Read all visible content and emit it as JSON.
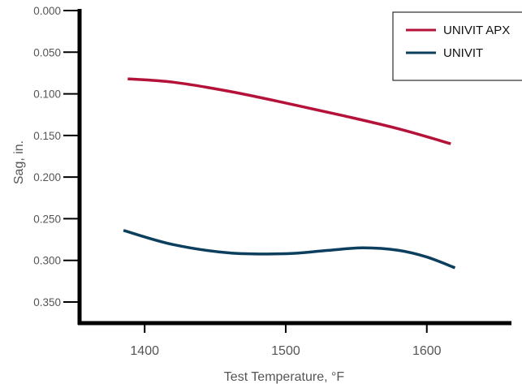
{
  "chart_data": {
    "type": "line",
    "title": "",
    "xlabel": "Test Temperature, °F",
    "ylabel": "Sag, in.",
    "xlim": [
      1355,
      1660
    ],
    "ylim": [
      0.0,
      0.35
    ],
    "y_inverted": true,
    "grid": false,
    "legend_position": "top-right",
    "x_ticks": [
      1400,
      1500,
      1600
    ],
    "x_tick_labels": [
      "1400",
      "1500",
      "1600"
    ],
    "y_ticks": [
      0.0,
      0.05,
      0.1,
      0.15,
      0.2,
      0.25,
      0.3,
      0.35
    ],
    "y_tick_labels": [
      "0.000",
      "0.050",
      "0.100",
      "0.150",
      "0.200",
      "0.250",
      "0.300",
      "0.350"
    ],
    "series": [
      {
        "name": "UNIVIT APX",
        "color": "#b5123a",
        "x": [
          1388,
          1420,
          1460,
          1500,
          1540,
          1580,
          1617
        ],
        "y": [
          0.082,
          0.086,
          0.097,
          0.111,
          0.126,
          0.142,
          0.16
        ]
      },
      {
        "name": "UNIVIT",
        "color": "#0c3f5e",
        "x": [
          1385,
          1420,
          1460,
          1500,
          1530,
          1555,
          1580,
          1600,
          1620
        ],
        "y": [
          0.264,
          0.281,
          0.291,
          0.292,
          0.288,
          0.285,
          0.288,
          0.296,
          0.309
        ]
      }
    ]
  }
}
